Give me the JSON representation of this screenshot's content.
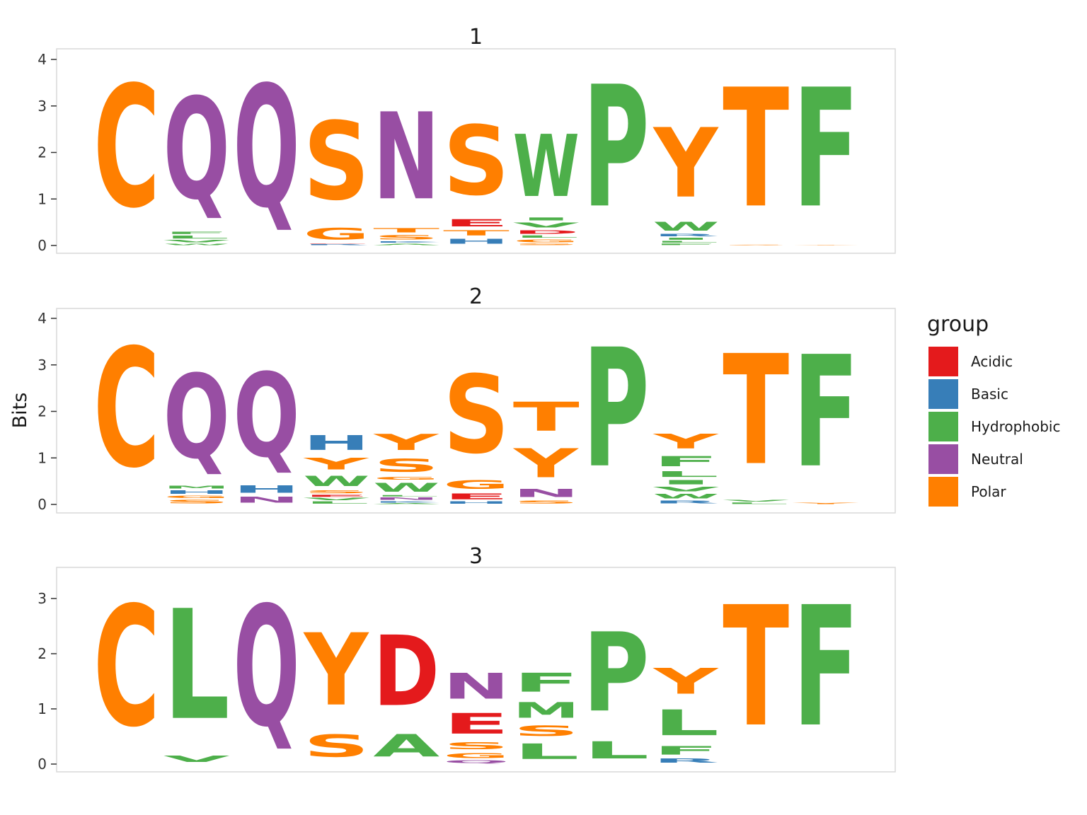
{
  "chart_data": {
    "type": "sequence-logo",
    "ylabel": "Bits",
    "legend": {
      "title": "group",
      "position": "right",
      "items": [
        {
          "label": "Acidic",
          "color": "#E41A1C"
        },
        {
          "label": "Basic",
          "color": "#377EB8"
        },
        {
          "label": "Hydrophobic",
          "color": "#4DAF4A"
        },
        {
          "label": "Neutral",
          "color": "#984EA3"
        },
        {
          "label": "Polar",
          "color": "#FF7F00"
        }
      ]
    },
    "panels": [
      {
        "title": "1",
        "ylim": [
          0,
          4.35
        ],
        "yticks": [
          "0",
          "1",
          "2",
          "3",
          "4"
        ],
        "columns": [
          [
            [
              "C",
              "Polar",
              4.2
            ]
          ],
          [
            [
              "W",
              "Hydrophobic",
              0.05
            ],
            [
              "V",
              "Hydrophobic",
              0.08
            ],
            [
              "L",
              "Hydrophobic",
              0.1
            ],
            [
              "F",
              "Hydrophobic",
              0.08
            ],
            [
              "Q",
              "Neutral",
              3.5
            ]
          ],
          [
            [
              "Q",
              "Neutral",
              4.2
            ]
          ],
          [
            [
              "R",
              "Basic",
              0.03
            ],
            [
              "D",
              "Acidic",
              0.02
            ],
            [
              "G",
              "Polar",
              0.4
            ],
            [
              "S",
              "Polar",
              2.7
            ]
          ],
          [
            [
              "A",
              "Hydrophobic",
              0.05
            ],
            [
              "K",
              "Basic",
              0.05
            ],
            [
              "S",
              "Polar",
              0.15
            ],
            [
              "T",
              "Polar",
              0.15
            ],
            [
              "N",
              "Neutral",
              3.0
            ]
          ],
          [
            [
              "H",
              "Basic",
              0.18
            ],
            [
              "T",
              "Polar",
              0.18
            ],
            [
              "E",
              "Acidic",
              0.25
            ],
            [
              "S",
              "Polar",
              2.4
            ]
          ],
          [
            [
              "S",
              "Polar",
              0.05
            ],
            [
              "G",
              "Polar",
              0.1
            ],
            [
              "L",
              "Hydrophobic",
              0.08
            ],
            [
              "D",
              "Acidic",
              0.12
            ],
            [
              "V",
              "Hydrophobic",
              0.17
            ],
            [
              "I",
              "Hydrophobic",
              0.1
            ],
            [
              "W",
              "Hydrophobic",
              2.15
            ]
          ],
          [
            [
              "P",
              "Hydrophobic",
              4.2
            ]
          ],
          [
            [
              "F",
              "Hydrophobic",
              0.05
            ],
            [
              "L",
              "Hydrophobic",
              0.06
            ],
            [
              "I",
              "Hydrophobic",
              0.07
            ],
            [
              "R",
              "Basic",
              0.08
            ],
            [
              "W",
              "Hydrophobic",
              0.3
            ],
            [
              "Y",
              "Polar",
              2.4
            ]
          ],
          [
            [
              "S",
              "Polar",
              0.02
            ],
            [
              "T",
              "Polar",
              4.1
            ]
          ],
          [
            [
              "Y",
              "Polar",
              0.02
            ],
            [
              "F",
              "Hydrophobic",
              4.1
            ]
          ]
        ]
      },
      {
        "title": "2",
        "ylim": [
          0,
          4.35
        ],
        "yticks": [
          "0",
          "1",
          "2",
          "3",
          "4"
        ],
        "columns": [
          [
            [
              "C",
              "Polar",
              4.1
            ]
          ],
          [
            [
              "S",
              "Polar",
              0.12
            ],
            [
              "G",
              "Polar",
              0.08
            ],
            [
              "H",
              "Basic",
              0.12
            ],
            [
              "M",
              "Hydrophobic",
              0.1
            ],
            [
              "Q",
              "Neutral",
              2.9
            ]
          ],
          [
            [
              "N",
              "Neutral",
              0.2
            ],
            [
              "H",
              "Basic",
              0.25
            ],
            [
              "Q",
              "Neutral",
              2.9
            ]
          ],
          [
            [
              "L",
              "Hydrophobic",
              0.08
            ],
            [
              "V",
              "Hydrophobic",
              0.07
            ],
            [
              "E",
              "Acidic",
              0.07
            ],
            [
              "S",
              "Polar",
              0.1
            ],
            [
              "W",
              "Hydrophobic",
              0.35
            ],
            [
              "Y",
              "Polar",
              0.4
            ],
            [
              "H",
              "Basic",
              0.5
            ]
          ],
          [
            [
              "A",
              "Hydrophobic",
              0.03
            ],
            [
              "K",
              "Basic",
              0.05
            ],
            [
              "N",
              "Neutral",
              0.08
            ],
            [
              "L",
              "Hydrophobic",
              0.05
            ],
            [
              "W",
              "Hydrophobic",
              0.3
            ],
            [
              "G",
              "Polar",
              0.1
            ],
            [
              "S",
              "Polar",
              0.45
            ],
            [
              "Y",
              "Polar",
              0.55
            ]
          ],
          [
            [
              "H",
              "Basic",
              0.07
            ],
            [
              "E",
              "Acidic",
              0.2
            ],
            [
              "G",
              "Polar",
              0.3
            ],
            [
              "S",
              "Polar",
              2.7
            ]
          ],
          [
            [
              "S",
              "Polar",
              0.1
            ],
            [
              "N",
              "Neutral",
              0.28
            ],
            [
              "Y",
              "Polar",
              1.0
            ],
            [
              "T",
              "Polar",
              1.0
            ]
          ],
          [
            [
              "P",
              "Hydrophobic",
              4.1
            ]
          ],
          [
            [
              "R",
              "Basic",
              0.1
            ],
            [
              "W",
              "Hydrophobic",
              0.15
            ],
            [
              "V",
              "Hydrophobic",
              0.15
            ],
            [
              "I",
              "Hydrophobic",
              0.15
            ],
            [
              "L",
              "Hydrophobic",
              0.2
            ],
            [
              "F",
              "Hydrophobic",
              0.35
            ],
            [
              "Y",
              "Polar",
              0.5
            ]
          ],
          [
            [
              "L",
              "Hydrophobic",
              0.05
            ],
            [
              "V",
              "Hydrophobic",
              0.06
            ],
            [
              "T",
              "Polar",
              3.8
            ]
          ],
          [
            [
              "Y",
              "Polar",
              0.05
            ],
            [
              "F",
              "Hydrophobic",
              3.85
            ]
          ]
        ]
      },
      {
        "title": "3",
        "ylim": [
          0,
          3.6
        ],
        "yticks": [
          "0",
          "1",
          "2",
          "3"
        ],
        "columns": [
          [
            [
              "C",
              "Polar",
              3.5
            ]
          ],
          [
            [
              "V",
              "Hydrophobic",
              0.18
            ],
            [
              "L",
              "Hydrophobic",
              3.2
            ]
          ],
          [
            [
              "Q",
              "Neutral",
              3.5
            ]
          ],
          [
            [
              "S",
              "Polar",
              0.65
            ],
            [
              "Y",
              "Polar",
              2.1
            ]
          ],
          [
            [
              "A",
              "Hydrophobic",
              0.65
            ],
            [
              "D",
              "Acidic",
              2.05
            ]
          ],
          [
            [
              "Q",
              "Neutral",
              0.08
            ],
            [
              "G",
              "Polar",
              0.15
            ],
            [
              "S",
              "Polar",
              0.2
            ],
            [
              "E",
              "Acidic",
              0.6
            ],
            [
              "N",
              "Neutral",
              0.75
            ]
          ],
          [
            [
              "L",
              "Hydrophobic",
              0.45
            ],
            [
              "S",
              "Polar",
              0.3
            ],
            [
              "M",
              "Hydrophobic",
              0.45
            ],
            [
              "F",
              "Hydrophobic",
              0.55
            ]
          ],
          [
            [
              "L",
              "Hydrophobic",
              0.5
            ],
            [
              "P",
              "Hydrophobic",
              2.3
            ]
          ],
          [
            [
              "R",
              "Basic",
              0.12
            ],
            [
              "F",
              "Hydrophobic",
              0.25
            ],
            [
              "L",
              "Hydrophobic",
              0.75
            ],
            [
              "Y",
              "Polar",
              0.75
            ]
          ],
          [
            [
              "T",
              "Polar",
              3.5
            ]
          ],
          [
            [
              "F",
              "Hydrophobic",
              3.5
            ]
          ]
        ]
      }
    ]
  }
}
